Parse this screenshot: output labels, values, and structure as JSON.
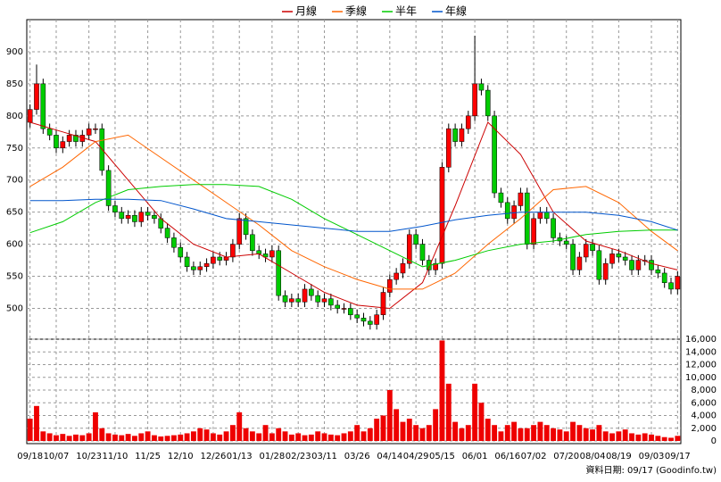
{
  "chart_data": {
    "type": "candlestick",
    "legend": "top",
    "grid": true,
    "up_color": "#ff0000",
    "down_color": "#00cc00",
    "footer": "資料日期: 09/17 (Goodinfo.tw)",
    "ylim": [
      452,
      950
    ],
    "yticks": [
      500,
      550,
      600,
      650,
      700,
      750,
      800,
      850,
      900
    ],
    "xticks": [
      {
        "value": 0,
        "label": "09/18"
      },
      {
        "value": 4,
        "label": "10/07"
      },
      {
        "value": 9,
        "label": "10/23"
      },
      {
        "value": 13,
        "label": "11/10"
      },
      {
        "value": 18,
        "label": "11/25"
      },
      {
        "value": 23,
        "label": "12/10"
      },
      {
        "value": 28,
        "label": "12/26"
      },
      {
        "value": 32,
        "label": "01/13"
      },
      {
        "value": 37,
        "label": "01/28"
      },
      {
        "value": 41,
        "label": "02/23"
      },
      {
        "value": 45,
        "label": "03/11"
      },
      {
        "value": 50,
        "label": "03/26"
      },
      {
        "value": 55,
        "label": "04/14"
      },
      {
        "value": 59,
        "label": "04/29"
      },
      {
        "value": 63,
        "label": "05/15"
      },
      {
        "value": 68,
        "label": "06/01"
      },
      {
        "value": 73,
        "label": "06/16"
      },
      {
        "value": 77,
        "label": "07/02"
      },
      {
        "value": 82,
        "label": "07/20"
      },
      {
        "value": 86,
        "label": "08/04"
      },
      {
        "value": 90,
        "label": "08/19"
      },
      {
        "value": 95,
        "label": "09/03"
      },
      {
        "value": 99,
        "label": "09/17"
      }
    ],
    "open": [
      790,
      810,
      850,
      780,
      770,
      750,
      760,
      770,
      760,
      770,
      780,
      780,
      715,
      660,
      650,
      640,
      645,
      635,
      650,
      645,
      640,
      625,
      610,
      595,
      580,
      565,
      560,
      565,
      570,
      580,
      575,
      580,
      600,
      640,
      615,
      590,
      585,
      580,
      590,
      520,
      510,
      515,
      510,
      530,
      520,
      510,
      515,
      505,
      500,
      500,
      490,
      485,
      480,
      475,
      490,
      525,
      545,
      555,
      570,
      615,
      600,
      575,
      560,
      570,
      720,
      780,
      760,
      780,
      800,
      850,
      840,
      800,
      680,
      665,
      640,
      660,
      680,
      600,
      640,
      650,
      640,
      610,
      605,
      600,
      560,
      580,
      600,
      590,
      545,
      570,
      585,
      580,
      575,
      560,
      575,
      575,
      560,
      555,
      540,
      530
    ],
    "high": [
      818,
      880,
      858,
      788,
      778,
      768,
      778,
      778,
      778,
      788,
      788,
      788,
      723,
      668,
      658,
      653,
      653,
      658,
      658,
      653,
      648,
      633,
      618,
      603,
      588,
      573,
      573,
      578,
      588,
      588,
      588,
      608,
      648,
      648,
      623,
      598,
      593,
      598,
      598,
      528,
      523,
      523,
      538,
      538,
      528,
      523,
      523,
      513,
      508,
      508,
      498,
      493,
      488,
      498,
      533,
      553,
      563,
      578,
      623,
      623,
      608,
      583,
      578,
      728,
      788,
      788,
      788,
      808,
      925,
      858,
      848,
      808,
      688,
      673,
      668,
      688,
      688,
      648,
      658,
      658,
      648,
      618,
      613,
      608,
      588,
      608,
      608,
      598,
      578,
      593,
      593,
      588,
      583,
      583,
      583,
      583,
      568,
      563,
      548,
      558
    ],
    "low": [
      782,
      802,
      772,
      762,
      742,
      742,
      752,
      752,
      752,
      762,
      772,
      707,
      652,
      642,
      632,
      632,
      627,
      627,
      637,
      632,
      617,
      602,
      587,
      572,
      557,
      552,
      552,
      557,
      562,
      567,
      567,
      572,
      592,
      607,
      582,
      577,
      572,
      572,
      512,
      502,
      502,
      502,
      502,
      512,
      502,
      502,
      497,
      492,
      492,
      482,
      477,
      472,
      467,
      467,
      482,
      517,
      537,
      547,
      562,
      592,
      567,
      552,
      552,
      562,
      712,
      752,
      752,
      772,
      792,
      832,
      792,
      672,
      657,
      632,
      632,
      652,
      592,
      592,
      632,
      632,
      602,
      597,
      592,
      552,
      552,
      572,
      582,
      537,
      537,
      562,
      572,
      567,
      552,
      552,
      567,
      552,
      547,
      532,
      522,
      522
    ],
    "close": [
      810,
      850,
      780,
      770,
      750,
      760,
      770,
      760,
      770,
      780,
      780,
      715,
      660,
      650,
      640,
      645,
      635,
      650,
      645,
      640,
      625,
      610,
      595,
      580,
      565,
      560,
      565,
      570,
      580,
      575,
      580,
      600,
      640,
      615,
      590,
      585,
      580,
      590,
      520,
      510,
      515,
      510,
      530,
      520,
      510,
      515,
      505,
      500,
      500,
      490,
      485,
      480,
      475,
      490,
      525,
      545,
      555,
      570,
      615,
      600,
      575,
      560,
      570,
      720,
      780,
      760,
      780,
      800,
      850,
      840,
      800,
      680,
      665,
      640,
      660,
      680,
      600,
      640,
      650,
      640,
      610,
      605,
      600,
      560,
      580,
      600,
      590,
      545,
      570,
      585,
      580,
      575,
      560,
      575,
      575,
      560,
      555,
      540,
      530,
      550
    ],
    "ma_x": [
      0,
      5,
      10,
      15,
      20,
      25,
      30,
      35,
      40,
      45,
      50,
      55,
      60,
      65,
      70,
      75,
      80,
      85,
      90,
      95,
      99
    ],
    "series": [
      {
        "name": "月線",
        "color": "#cc0000",
        "values": [
          790,
          775,
          760,
          700,
          640,
          600,
          580,
          585,
          555,
          525,
          505,
          500,
          540,
          660,
          790,
          740,
          650,
          605,
          590,
          570,
          560
        ]
      },
      {
        "name": "季線",
        "color": "#ff6600",
        "values": [
          690,
          720,
          760,
          770,
          735,
          700,
          665,
          630,
          590,
          565,
          545,
          530,
          530,
          555,
          600,
          640,
          685,
          690,
          665,
          620,
          590
        ]
      },
      {
        "name": "半年",
        "color": "#00cc00",
        "values": [
          618,
          635,
          665,
          685,
          690,
          693,
          693,
          690,
          670,
          640,
          615,
          590,
          565,
          575,
          590,
          600,
          605,
          615,
          620,
          622,
          622
        ]
      },
      {
        "name": "年線",
        "color": "#0055cc",
        "values": [
          668,
          668,
          670,
          670,
          668,
          655,
          640,
          635,
          630,
          625,
          620,
          620,
          628,
          638,
          645,
          650,
          650,
          650,
          645,
          635,
          622
        ]
      }
    ],
    "volume": {
      "color": "#ee0000",
      "ylim": [
        0,
        16000
      ],
      "yticks": [
        0,
        {
          "value": 2000,
          "label": "2,000"
        },
        {
          "value": 4000,
          "label": "4,000"
        },
        {
          "value": 6000,
          "label": "6,000"
        },
        {
          "value": 8000,
          "label": "8,000"
        },
        {
          "value": 10000,
          "label": "10,000"
        },
        {
          "value": 12000,
          "label": "12,000"
        },
        {
          "value": 14000,
          "label": "14,000"
        },
        {
          "value": 16000,
          "label": "16,000"
        }
      ],
      "values": [
        3500,
        5500,
        1500,
        1200,
        900,
        1100,
        800,
        1000,
        900,
        1200,
        4500,
        2000,
        1200,
        1000,
        900,
        1100,
        800,
        1200,
        1500,
        900,
        700,
        800,
        900,
        1000,
        1200,
        1500,
        2000,
        1800,
        1200,
        1000,
        1500,
        2500,
        4500,
        2000,
        1500,
        1200,
        2500,
        1200,
        2000,
        1500,
        1000,
        1200,
        900,
        1000,
        1500,
        1200,
        1000,
        900,
        1200,
        1500,
        2500,
        1500,
        2000,
        3500,
        4000,
        8000,
        5000,
        3000,
        3500,
        2500,
        2000,
        2500,
        5000,
        15800,
        9000,
        3000,
        2000,
        2500,
        9000,
        6000,
        3500,
        2500,
        1500,
        2500,
        3000,
        2000,
        2000,
        2500,
        3000,
        2500,
        2000,
        1800,
        1500,
        3000,
        2500,
        2000,
        1800,
        2500,
        1500,
        1200,
        1500,
        1800,
        1200,
        1000,
        1200,
        1000,
        800,
        600,
        500,
        800
      ]
    }
  }
}
